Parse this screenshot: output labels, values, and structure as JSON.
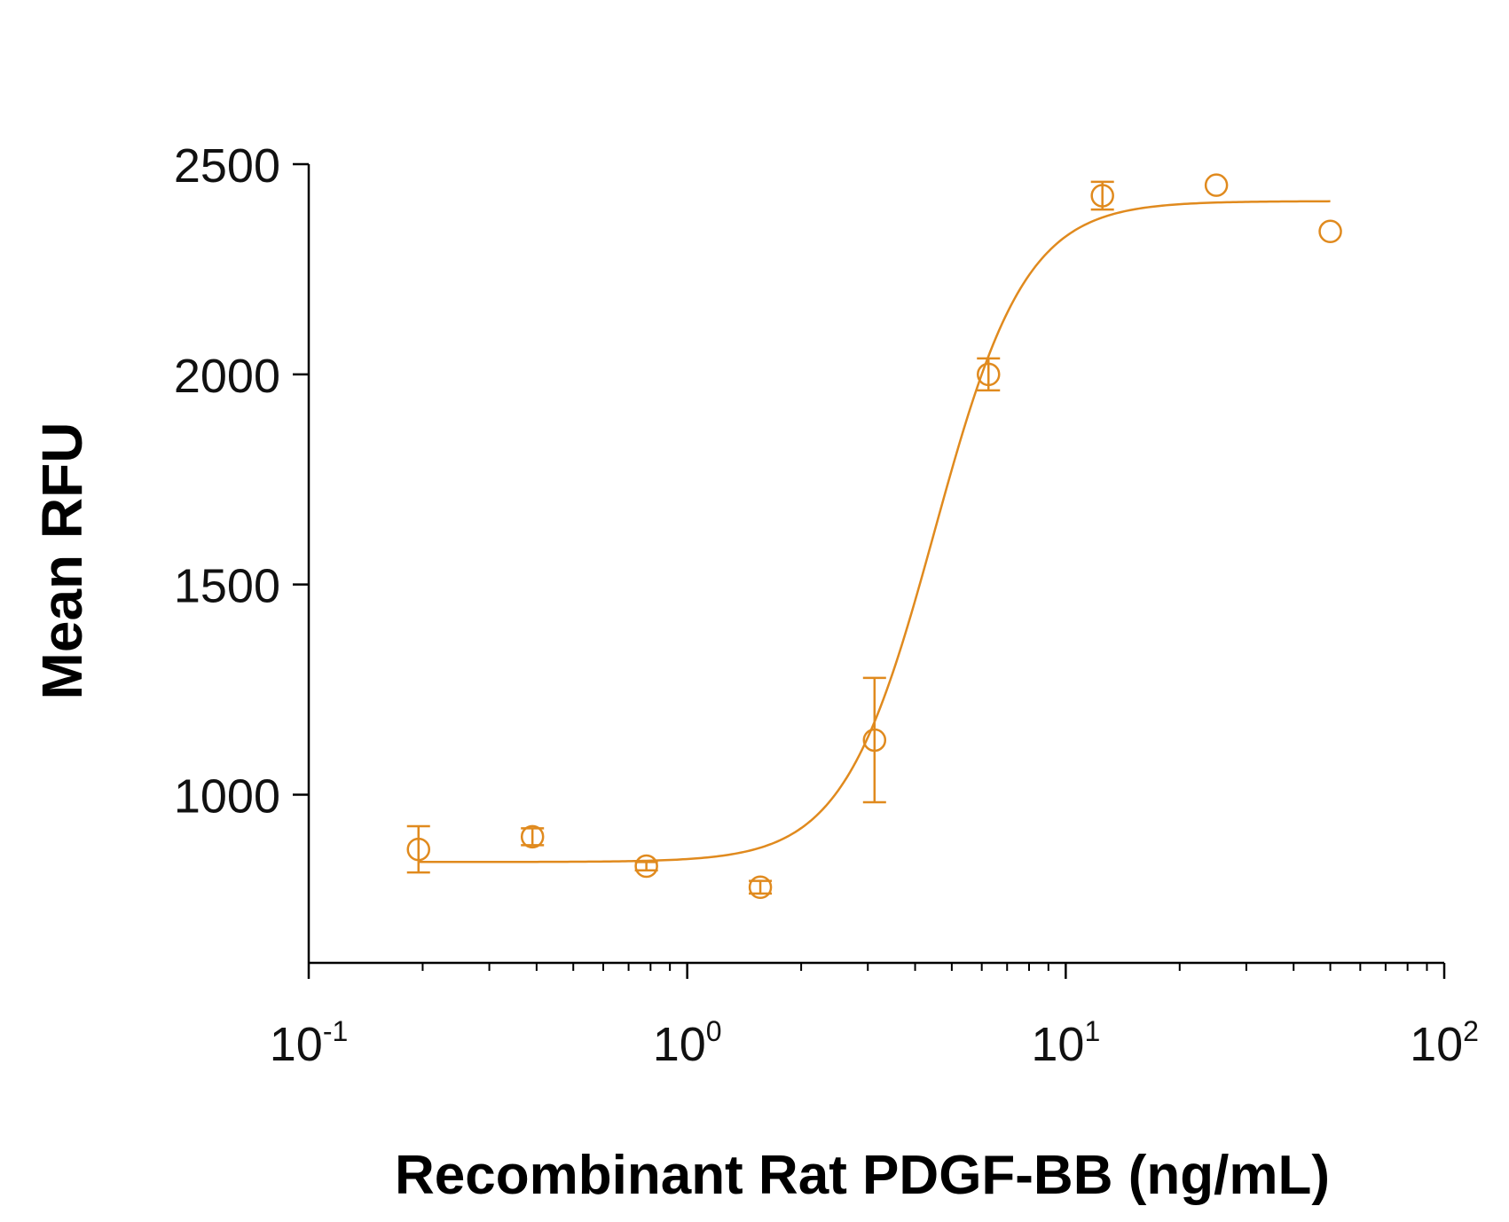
{
  "chart_data": {
    "type": "scatter",
    "title": "",
    "xlabel": "Recombinant Rat PDGF-BB (ng/mL)",
    "ylabel": "Mean RFU",
    "x_scale": "log",
    "xlim": [
      0.1,
      100
    ],
    "ylim": [
      600,
      2500
    ],
    "x_ticks": [
      {
        "base": "10",
        "exp": "-1",
        "value": 0.1
      },
      {
        "base": "10",
        "exp": "0",
        "value": 1
      },
      {
        "base": "10",
        "exp": "1",
        "value": 10
      },
      {
        "base": "10",
        "exp": "2",
        "value": 100
      }
    ],
    "y_ticks": [
      {
        "label": "1000",
        "value": 1000
      },
      {
        "label": "1500",
        "value": 1500
      },
      {
        "label": "2000",
        "value": 2000
      },
      {
        "label": "2500",
        "value": 2500
      }
    ],
    "color": "#E08A1E",
    "grid": false,
    "legend": "none",
    "series": [
      {
        "marker": "open-circle",
        "points": [
          {
            "x": 0.195,
            "y": 870,
            "err": 55
          },
          {
            "x": 0.39,
            "y": 900,
            "err": 20
          },
          {
            "x": 0.78,
            "y": 830,
            "err": 10
          },
          {
            "x": 1.56,
            "y": 780,
            "err": 15
          },
          {
            "x": 3.125,
            "y": 1130,
            "err": 148
          },
          {
            "x": 6.25,
            "y": 2000,
            "err": 38
          },
          {
            "x": 12.5,
            "y": 2425,
            "err": 33
          },
          {
            "x": 25,
            "y": 2450,
            "err": 0
          },
          {
            "x": 50,
            "y": 2340,
            "err": 0
          }
        ]
      }
    ],
    "fit_curve": {
      "model": "4PL",
      "bottom": 840,
      "top": 2412,
      "ec50": 4.5,
      "hill": 3.6,
      "x_range": [
        0.195,
        50
      ]
    }
  }
}
